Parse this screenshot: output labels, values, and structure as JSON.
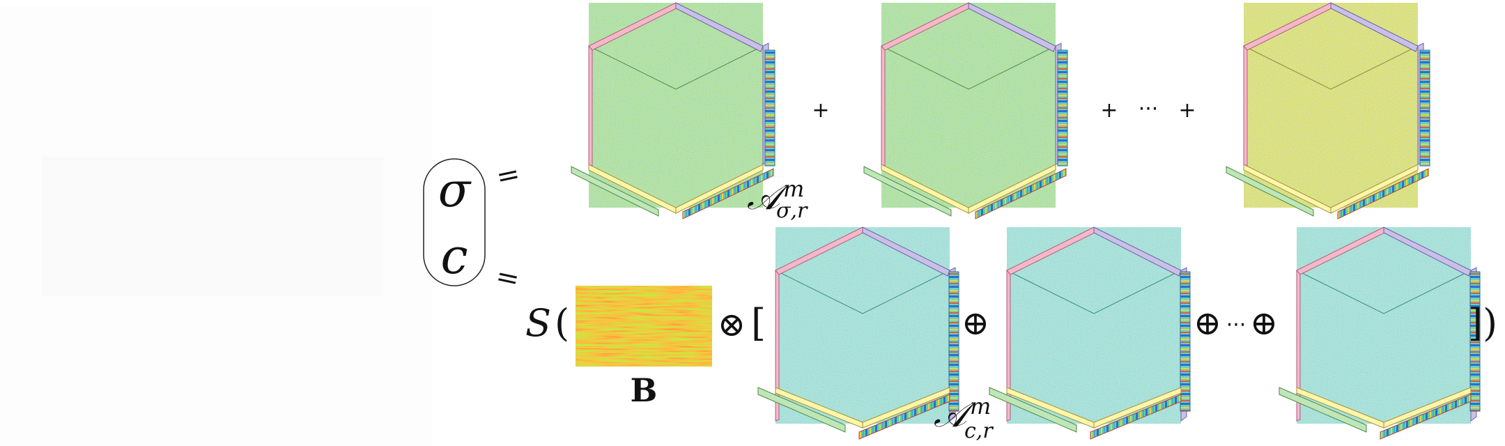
{
  "equation": {
    "lhs_top": "σ",
    "lhs_bottom": "c",
    "equals": "=",
    "top_row": {
      "plus": "+",
      "ellipsis": "···",
      "tensor_label": {
        "base": "𝒜",
        "superscript": "m",
        "subscript": "σ,r"
      }
    },
    "bottom_row": {
      "function": "S",
      "open_paren": "(",
      "close": "])",
      "matrix_label": "B",
      "otimes": "⊗",
      "open_bracket": "[",
      "oplus": "⊕",
      "ellipsis": "···",
      "tensor_label": {
        "base": "𝒜",
        "superscript": "m",
        "subscript": "c,r"
      }
    }
  },
  "colors": {
    "cube_green": "#7fd67a",
    "cube_cyan": "#3fc6c0",
    "cube_yellow": "#e8e05a",
    "bar_pink": "#f4b8c8",
    "bar_lavender": "#c8c0e8",
    "bar_sky": "#4fc3f0",
    "bar_yellow": "#fff6a8",
    "bar_mint": "#bfe6b8",
    "bar_salmon": "#f48a7a",
    "matrix_orange": "#e07820",
    "matrix_green": "#8ad030"
  }
}
